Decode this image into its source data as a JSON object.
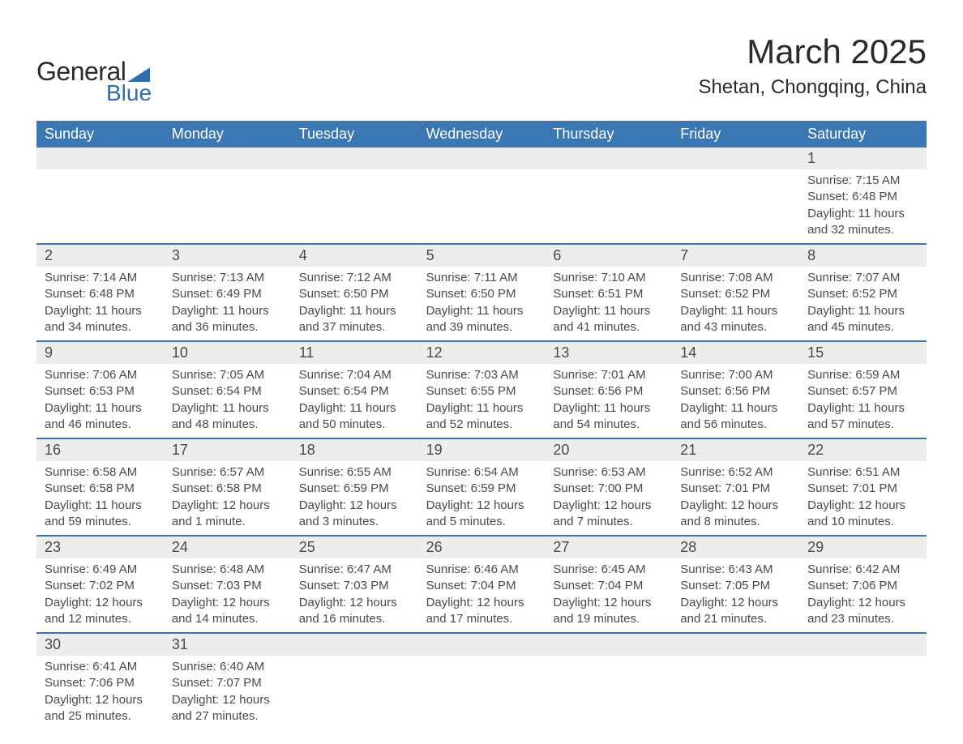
{
  "logo": {
    "text_general": "General",
    "text_blue": "Blue",
    "accent_color": "#2f6fad"
  },
  "header": {
    "month_title": "March 2025",
    "location": "Shetan, Chongqing, China"
  },
  "colors": {
    "header_bg": "#3a77b3",
    "header_text": "#ffffff",
    "daybar_bg": "#ededed",
    "row_border": "#3a77b3",
    "text": "#4a4a4a",
    "page_bg": "#ffffff"
  },
  "typography": {
    "month_title_fontsize": 42,
    "location_fontsize": 24,
    "weekday_fontsize": 18,
    "daynum_fontsize": 18,
    "body_fontsize": 15,
    "font_family": "Arial"
  },
  "calendar": {
    "type": "table",
    "columns": [
      "Sunday",
      "Monday",
      "Tuesday",
      "Wednesday",
      "Thursday",
      "Friday",
      "Saturday"
    ],
    "weeks": [
      [
        null,
        null,
        null,
        null,
        null,
        null,
        {
          "n": "1",
          "sunrise": "Sunrise: 7:15 AM",
          "sunset": "Sunset: 6:48 PM",
          "dl1": "Daylight: 11 hours",
          "dl2": "and 32 minutes."
        }
      ],
      [
        {
          "n": "2",
          "sunrise": "Sunrise: 7:14 AM",
          "sunset": "Sunset: 6:48 PM",
          "dl1": "Daylight: 11 hours",
          "dl2": "and 34 minutes."
        },
        {
          "n": "3",
          "sunrise": "Sunrise: 7:13 AM",
          "sunset": "Sunset: 6:49 PM",
          "dl1": "Daylight: 11 hours",
          "dl2": "and 36 minutes."
        },
        {
          "n": "4",
          "sunrise": "Sunrise: 7:12 AM",
          "sunset": "Sunset: 6:50 PM",
          "dl1": "Daylight: 11 hours",
          "dl2": "and 37 minutes."
        },
        {
          "n": "5",
          "sunrise": "Sunrise: 7:11 AM",
          "sunset": "Sunset: 6:50 PM",
          "dl1": "Daylight: 11 hours",
          "dl2": "and 39 minutes."
        },
        {
          "n": "6",
          "sunrise": "Sunrise: 7:10 AM",
          "sunset": "Sunset: 6:51 PM",
          "dl1": "Daylight: 11 hours",
          "dl2": "and 41 minutes."
        },
        {
          "n": "7",
          "sunrise": "Sunrise: 7:08 AM",
          "sunset": "Sunset: 6:52 PM",
          "dl1": "Daylight: 11 hours",
          "dl2": "and 43 minutes."
        },
        {
          "n": "8",
          "sunrise": "Sunrise: 7:07 AM",
          "sunset": "Sunset: 6:52 PM",
          "dl1": "Daylight: 11 hours",
          "dl2": "and 45 minutes."
        }
      ],
      [
        {
          "n": "9",
          "sunrise": "Sunrise: 7:06 AM",
          "sunset": "Sunset: 6:53 PM",
          "dl1": "Daylight: 11 hours",
          "dl2": "and 46 minutes."
        },
        {
          "n": "10",
          "sunrise": "Sunrise: 7:05 AM",
          "sunset": "Sunset: 6:54 PM",
          "dl1": "Daylight: 11 hours",
          "dl2": "and 48 minutes."
        },
        {
          "n": "11",
          "sunrise": "Sunrise: 7:04 AM",
          "sunset": "Sunset: 6:54 PM",
          "dl1": "Daylight: 11 hours",
          "dl2": "and 50 minutes."
        },
        {
          "n": "12",
          "sunrise": "Sunrise: 7:03 AM",
          "sunset": "Sunset: 6:55 PM",
          "dl1": "Daylight: 11 hours",
          "dl2": "and 52 minutes."
        },
        {
          "n": "13",
          "sunrise": "Sunrise: 7:01 AM",
          "sunset": "Sunset: 6:56 PM",
          "dl1": "Daylight: 11 hours",
          "dl2": "and 54 minutes."
        },
        {
          "n": "14",
          "sunrise": "Sunrise: 7:00 AM",
          "sunset": "Sunset: 6:56 PM",
          "dl1": "Daylight: 11 hours",
          "dl2": "and 56 minutes."
        },
        {
          "n": "15",
          "sunrise": "Sunrise: 6:59 AM",
          "sunset": "Sunset: 6:57 PM",
          "dl1": "Daylight: 11 hours",
          "dl2": "and 57 minutes."
        }
      ],
      [
        {
          "n": "16",
          "sunrise": "Sunrise: 6:58 AM",
          "sunset": "Sunset: 6:58 PM",
          "dl1": "Daylight: 11 hours",
          "dl2": "and 59 minutes."
        },
        {
          "n": "17",
          "sunrise": "Sunrise: 6:57 AM",
          "sunset": "Sunset: 6:58 PM",
          "dl1": "Daylight: 12 hours",
          "dl2": "and 1 minute."
        },
        {
          "n": "18",
          "sunrise": "Sunrise: 6:55 AM",
          "sunset": "Sunset: 6:59 PM",
          "dl1": "Daylight: 12 hours",
          "dl2": "and 3 minutes."
        },
        {
          "n": "19",
          "sunrise": "Sunrise: 6:54 AM",
          "sunset": "Sunset: 6:59 PM",
          "dl1": "Daylight: 12 hours",
          "dl2": "and 5 minutes."
        },
        {
          "n": "20",
          "sunrise": "Sunrise: 6:53 AM",
          "sunset": "Sunset: 7:00 PM",
          "dl1": "Daylight: 12 hours",
          "dl2": "and 7 minutes."
        },
        {
          "n": "21",
          "sunrise": "Sunrise: 6:52 AM",
          "sunset": "Sunset: 7:01 PM",
          "dl1": "Daylight: 12 hours",
          "dl2": "and 8 minutes."
        },
        {
          "n": "22",
          "sunrise": "Sunrise: 6:51 AM",
          "sunset": "Sunset: 7:01 PM",
          "dl1": "Daylight: 12 hours",
          "dl2": "and 10 minutes."
        }
      ],
      [
        {
          "n": "23",
          "sunrise": "Sunrise: 6:49 AM",
          "sunset": "Sunset: 7:02 PM",
          "dl1": "Daylight: 12 hours",
          "dl2": "and 12 minutes."
        },
        {
          "n": "24",
          "sunrise": "Sunrise: 6:48 AM",
          "sunset": "Sunset: 7:03 PM",
          "dl1": "Daylight: 12 hours",
          "dl2": "and 14 minutes."
        },
        {
          "n": "25",
          "sunrise": "Sunrise: 6:47 AM",
          "sunset": "Sunset: 7:03 PM",
          "dl1": "Daylight: 12 hours",
          "dl2": "and 16 minutes."
        },
        {
          "n": "26",
          "sunrise": "Sunrise: 6:46 AM",
          "sunset": "Sunset: 7:04 PM",
          "dl1": "Daylight: 12 hours",
          "dl2": "and 17 minutes."
        },
        {
          "n": "27",
          "sunrise": "Sunrise: 6:45 AM",
          "sunset": "Sunset: 7:04 PM",
          "dl1": "Daylight: 12 hours",
          "dl2": "and 19 minutes."
        },
        {
          "n": "28",
          "sunrise": "Sunrise: 6:43 AM",
          "sunset": "Sunset: 7:05 PM",
          "dl1": "Daylight: 12 hours",
          "dl2": "and 21 minutes."
        },
        {
          "n": "29",
          "sunrise": "Sunrise: 6:42 AM",
          "sunset": "Sunset: 7:06 PM",
          "dl1": "Daylight: 12 hours",
          "dl2": "and 23 minutes."
        }
      ],
      [
        {
          "n": "30",
          "sunrise": "Sunrise: 6:41 AM",
          "sunset": "Sunset: 7:06 PM",
          "dl1": "Daylight: 12 hours",
          "dl2": "and 25 minutes."
        },
        {
          "n": "31",
          "sunrise": "Sunrise: 6:40 AM",
          "sunset": "Sunset: 7:07 PM",
          "dl1": "Daylight: 12 hours",
          "dl2": "and 27 minutes."
        },
        null,
        null,
        null,
        null,
        null
      ]
    ]
  }
}
